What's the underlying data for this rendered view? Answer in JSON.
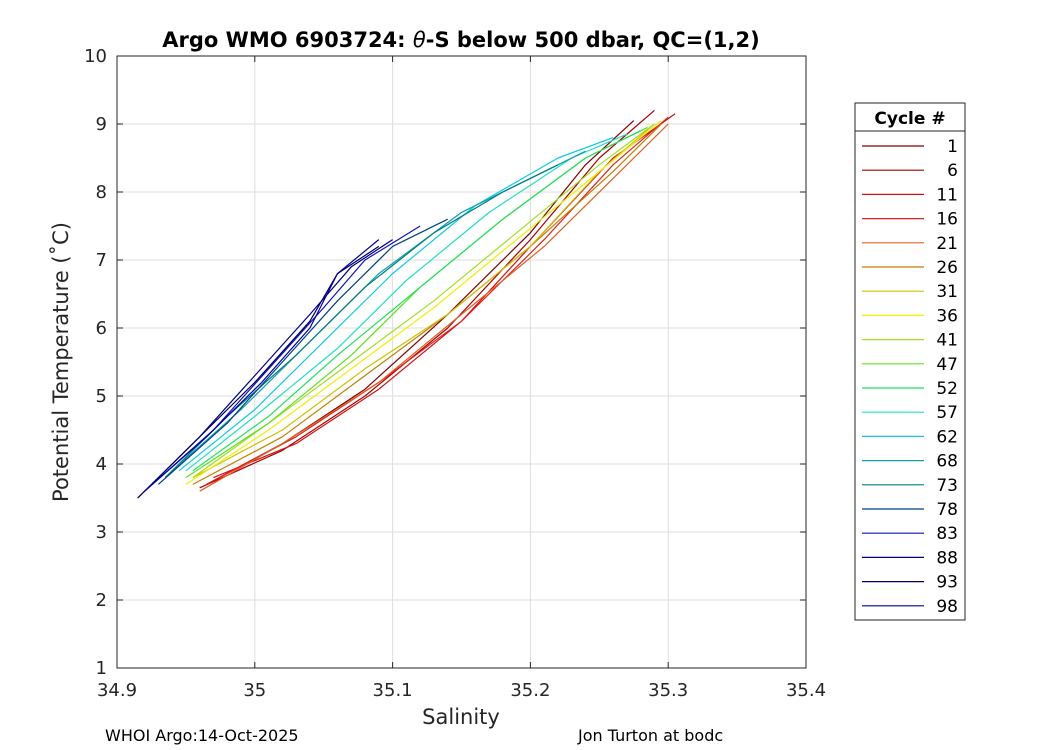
{
  "chart_data": {
    "type": "line",
    "title_prefix": "Argo WMO 6903724: ",
    "title_theta": "θ",
    "title_suffix": "-S below 500 dbar,  QC=(1,2)",
    "xlabel": "Salinity",
    "ylabel": "Potential Temperature (˚C)",
    "xlim": [
      34.9,
      35.4
    ],
    "ylim": [
      1,
      10
    ],
    "x_ticks": [
      "34.9",
      "35",
      "35.1",
      "35.2",
      "35.3",
      "35.4"
    ],
    "y_ticks": [
      "1",
      "2",
      "3",
      "4",
      "5",
      "6",
      "7",
      "8",
      "9",
      "10"
    ],
    "grid": true,
    "legend": {
      "title": "Cycle #",
      "placement": "right",
      "entries": [
        {
          "label": "1",
          "color": "#800000"
        },
        {
          "label": "6",
          "color": "#a50000"
        },
        {
          "label": "11",
          "color": "#d41010"
        },
        {
          "label": "16",
          "color": "#e02020"
        },
        {
          "label": "21",
          "color": "#e06020"
        },
        {
          "label": "26",
          "color": "#c08000"
        },
        {
          "label": "31",
          "color": "#d0c000"
        },
        {
          "label": "36",
          "color": "#f0f000"
        },
        {
          "label": "41",
          "color": "#a0e020"
        },
        {
          "label": "47",
          "color": "#60e020"
        },
        {
          "label": "52",
          "color": "#20e060"
        },
        {
          "label": "57",
          "color": "#20e0c0"
        },
        {
          "label": "62",
          "color": "#10c8e8"
        },
        {
          "label": "68",
          "color": "#10a0b0"
        },
        {
          "label": "73",
          "color": "#008080"
        },
        {
          "label": "78",
          "color": "#004080"
        },
        {
          "label": "83",
          "color": "#1010c0"
        },
        {
          "label": "88",
          "color": "#000080"
        },
        {
          "label": "93",
          "color": "#000060"
        },
        {
          "label": "98",
          "color": "#0000a0"
        }
      ]
    },
    "series": [
      {
        "name": "1",
        "x": [
          34.965,
          35.02,
          35.08,
          35.14,
          35.2,
          35.24,
          35.275
        ],
        "y": [
          3.7,
          4.3,
          5.1,
          6.2,
          7.4,
          8.4,
          9.05
        ]
      },
      {
        "name": "6",
        "x": [
          34.96,
          35.02,
          35.08,
          35.14,
          35.2,
          35.25,
          35.29
        ],
        "y": [
          3.65,
          4.2,
          5.0,
          6.0,
          7.3,
          8.5,
          9.2
        ]
      },
      {
        "name": "11",
        "x": [
          34.97,
          35.03,
          35.09,
          35.15,
          35.2,
          35.26,
          35.305
        ],
        "y": [
          3.8,
          4.3,
          5.1,
          6.1,
          7.2,
          8.5,
          9.15
        ]
      },
      {
        "name": "16",
        "x": [
          34.965,
          35.03,
          35.09,
          35.15,
          35.21,
          35.26,
          35.3
        ],
        "y": [
          3.7,
          4.4,
          5.2,
          6.1,
          7.3,
          8.4,
          9.1
        ]
      },
      {
        "name": "21",
        "x": [
          34.96,
          35.02,
          35.09,
          35.15,
          35.21,
          35.27,
          35.3
        ],
        "y": [
          3.6,
          4.3,
          5.2,
          6.2,
          7.2,
          8.4,
          9.0
        ]
      },
      {
        "name": "26",
        "x": [
          34.955,
          35.02,
          35.08,
          35.14,
          35.2,
          35.26,
          35.295
        ],
        "y": [
          3.7,
          4.4,
          5.3,
          6.2,
          7.2,
          8.3,
          9.0
        ]
      },
      {
        "name": "31",
        "x": [
          34.955,
          35.02,
          35.08,
          35.14,
          35.2,
          35.25,
          35.29
        ],
        "y": [
          3.8,
          4.5,
          5.4,
          6.2,
          7.2,
          8.3,
          9.0
        ]
      },
      {
        "name": "36",
        "x": [
          34.95,
          35.01,
          35.07,
          35.13,
          35.19,
          35.25,
          35.295
        ],
        "y": [
          3.7,
          4.5,
          5.4,
          6.3,
          7.3,
          8.3,
          9.05
        ]
      },
      {
        "name": "41",
        "x": [
          34.955,
          35.01,
          35.07,
          35.13,
          35.19,
          35.25,
          35.29
        ],
        "y": [
          3.8,
          4.6,
          5.5,
          6.4,
          7.4,
          8.4,
          9.0
        ]
      },
      {
        "name": "47",
        "x": [
          34.95,
          35.01,
          35.07,
          35.12,
          35.18,
          35.24,
          35.285
        ],
        "y": [
          3.8,
          4.6,
          5.6,
          6.6,
          7.6,
          8.5,
          8.95
        ]
      },
      {
        "name": "52",
        "x": [
          34.955,
          35.01,
          35.06,
          35.12,
          35.18,
          35.24,
          35.28
        ],
        "y": [
          3.9,
          4.7,
          5.6,
          6.6,
          7.6,
          8.5,
          8.9
        ]
      },
      {
        "name": "57",
        "x": [
          34.95,
          35.0,
          35.06,
          35.11,
          35.17,
          35.23,
          35.27
        ],
        "y": [
          3.9,
          4.7,
          5.7,
          6.7,
          7.7,
          8.5,
          8.85
        ]
      },
      {
        "name": "62",
        "x": [
          34.945,
          35.0,
          35.05,
          35.1,
          35.16,
          35.22,
          35.26
        ],
        "y": [
          3.9,
          4.8,
          5.8,
          6.8,
          7.8,
          8.5,
          8.8
        ]
      },
      {
        "name": "68",
        "x": [
          34.94,
          34.99,
          35.04,
          35.09,
          35.15,
          35.21,
          35.24
        ],
        "y": [
          3.9,
          4.8,
          5.8,
          6.8,
          7.7,
          8.3,
          8.6
        ]
      },
      {
        "name": "73",
        "x": [
          34.935,
          34.98,
          35.03,
          35.08,
          35.13,
          35.18,
          35.22
        ],
        "y": [
          3.8,
          4.7,
          5.6,
          6.6,
          7.4,
          8.0,
          8.4
        ]
      },
      {
        "name": "78",
        "x": [
          34.93,
          34.98,
          35.02,
          35.06,
          35.1,
          35.14
        ],
        "y": [
          3.7,
          4.6,
          5.5,
          6.4,
          7.2,
          7.6
        ]
      },
      {
        "name": "83",
        "x": [
          34.92,
          34.97,
          35.01,
          35.05,
          35.08,
          35.12
        ],
        "y": [
          3.6,
          4.5,
          5.4,
          6.3,
          7.0,
          7.5
        ]
      },
      {
        "name": "88",
        "x": [
          34.915,
          34.96,
          35.0,
          35.04,
          35.07,
          35.1
        ],
        "y": [
          3.5,
          4.4,
          5.3,
          6.2,
          6.9,
          7.3
        ]
      },
      {
        "name": "93",
        "x": [
          34.915,
          34.96,
          35.0,
          35.04,
          35.06,
          35.09
        ],
        "y": [
          3.5,
          4.4,
          5.2,
          6.1,
          6.8,
          7.2
        ]
      },
      {
        "name": "98",
        "x": [
          34.92,
          34.965,
          35.005,
          35.04,
          35.06,
          35.09
        ],
        "y": [
          3.6,
          4.4,
          5.2,
          6.0,
          6.8,
          7.3
        ]
      }
    ]
  },
  "footer": {
    "left": "WHOI Argo:14-Oct-2025",
    "right": "Jon Turton at bodc"
  }
}
